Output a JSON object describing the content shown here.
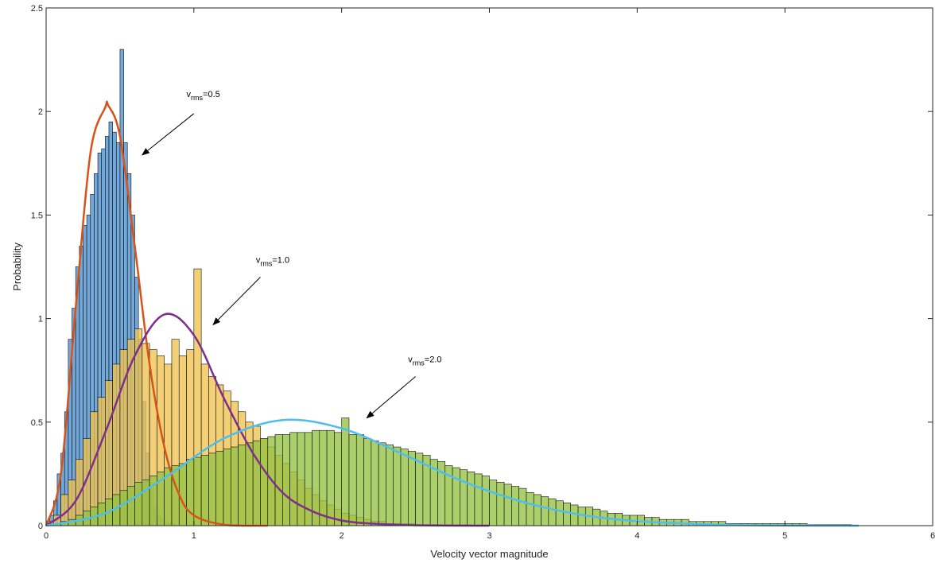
{
  "chart_data": {
    "type": "bar",
    "xlabel": "Velocity vector magnitude",
    "ylabel": "Probability",
    "xlim": [
      0,
      6
    ],
    "ylim": [
      0,
      2.5
    ],
    "xticks": [
      "0",
      "1",
      "2",
      "3",
      "4",
      "5",
      "6"
    ],
    "yticks": [
      "0",
      "0.5",
      "1",
      "1.5",
      "2",
      "2.5"
    ],
    "grid": false,
    "box": true,
    "bar_colors": [
      "#4a90cf",
      "#f0c34f",
      "#93c141"
    ],
    "curve_colors": [
      "#d95319",
      "#7e2f8e",
      "#4dbeee"
    ],
    "series": [
      {
        "kind": "histogram",
        "bin_start": 0.0,
        "bin_width": 0.025,
        "values": [
          0.01,
          0.05,
          0.12,
          0.25,
          0.35,
          0.55,
          0.9,
          1.05,
          1.25,
          1.35,
          1.45,
          1.5,
          1.6,
          1.7,
          1.8,
          1.82,
          1.88,
          1.95,
          1.9,
          1.85,
          2.3,
          1.85,
          1.7,
          1.5,
          1.2,
          0.9,
          0.6,
          0.35,
          0.2,
          0.1,
          0.05,
          0.03,
          0.02,
          0.01,
          0.01,
          0.0
        ]
      },
      {
        "kind": "histogram",
        "bin_start": 0.0,
        "bin_width": 0.05,
        "values": [
          0.02,
          0.05,
          0.15,
          0.22,
          0.32,
          0.42,
          0.55,
          0.62,
          0.7,
          0.78,
          0.85,
          0.9,
          0.95,
          0.88,
          0.85,
          0.82,
          0.78,
          0.9,
          0.82,
          0.85,
          1.24,
          0.78,
          0.72,
          0.68,
          0.65,
          0.6,
          0.55,
          0.5,
          0.48,
          0.42,
          0.38,
          0.34,
          0.3,
          0.26,
          0.22,
          0.18,
          0.15,
          0.12,
          0.1,
          0.08,
          0.06,
          0.05,
          0.04,
          0.03,
          0.02,
          0.02,
          0.01,
          0.01,
          0.01,
          0.01,
          0.0,
          0.0,
          0.0,
          0.0,
          0.0,
          0.0,
          0.0,
          0.0,
          0.0,
          0.0
        ]
      },
      {
        "kind": "histogram",
        "bin_start": 0.0,
        "bin_width": 0.05,
        "values": [
          0.005,
          0.01,
          0.02,
          0.03,
          0.05,
          0.07,
          0.09,
          0.11,
          0.13,
          0.15,
          0.17,
          0.19,
          0.21,
          0.22,
          0.24,
          0.26,
          0.28,
          0.29,
          0.3,
          0.32,
          0.33,
          0.34,
          0.35,
          0.36,
          0.37,
          0.38,
          0.39,
          0.4,
          0.41,
          0.42,
          0.43,
          0.44,
          0.44,
          0.45,
          0.45,
          0.45,
          0.46,
          0.46,
          0.46,
          0.45,
          0.52,
          0.44,
          0.44,
          0.42,
          0.41,
          0.4,
          0.39,
          0.38,
          0.37,
          0.36,
          0.35,
          0.34,
          0.32,
          0.31,
          0.29,
          0.28,
          0.27,
          0.26,
          0.25,
          0.24,
          0.22,
          0.21,
          0.2,
          0.19,
          0.18,
          0.16,
          0.15,
          0.14,
          0.13,
          0.12,
          0.11,
          0.1,
          0.09,
          0.09,
          0.08,
          0.07,
          0.06,
          0.06,
          0.05,
          0.05,
          0.05,
          0.04,
          0.04,
          0.03,
          0.03,
          0.03,
          0.03,
          0.02,
          0.02,
          0.02,
          0.02,
          0.02,
          0.01,
          0.01,
          0.01,
          0.01,
          0.01,
          0.01,
          0.01,
          0.01,
          0.01,
          0.01,
          0.01,
          0.005,
          0.005,
          0.005,
          0.005,
          0.005,
          0.005
        ]
      },
      {
        "kind": "curve",
        "x": [
          0,
          0.1,
          0.2,
          0.3,
          0.4,
          0.42,
          0.5,
          0.6,
          0.7,
          0.8,
          0.9,
          1.0,
          1.2,
          1.5
        ],
        "y": [
          0,
          0.25,
          1.05,
          1.8,
          2.02,
          2.03,
          1.88,
          1.35,
          0.78,
          0.38,
          0.15,
          0.05,
          0.005,
          0.0
        ]
      },
      {
        "kind": "curve",
        "x": [
          0,
          0.2,
          0.4,
          0.6,
          0.8,
          1.0,
          1.2,
          1.4,
          1.6,
          1.8,
          2.0,
          2.2,
          2.5,
          3.0
        ],
        "y": [
          0,
          0.12,
          0.45,
          0.82,
          1.02,
          0.92,
          0.62,
          0.35,
          0.16,
          0.07,
          0.025,
          0.01,
          0.002,
          0.0
        ]
      },
      {
        "kind": "curve",
        "x": [
          0,
          0.4,
          0.8,
          1.2,
          1.6,
          2.0,
          2.4,
          2.8,
          3.2,
          3.6,
          4.0,
          4.5,
          5.0,
          5.5
        ],
        "y": [
          0,
          0.06,
          0.23,
          0.42,
          0.51,
          0.47,
          0.35,
          0.22,
          0.12,
          0.055,
          0.022,
          0.006,
          0.001,
          0.0
        ]
      }
    ],
    "annotations": [
      {
        "base": "v",
        "sub": "rms",
        "rest": "=0.5",
        "text_x": 0.95,
        "text_y": 2.07,
        "arrow_from": [
          1.0,
          1.99
        ],
        "arrow_to": [
          0.65,
          1.79
        ]
      },
      {
        "base": "v",
        "sub": "rms",
        "rest": "=1.0",
        "text_x": 1.42,
        "text_y": 1.27,
        "arrow_from": [
          1.45,
          1.2
        ],
        "arrow_to": [
          1.13,
          0.97
        ]
      },
      {
        "base": "v",
        "sub": "rms",
        "rest": "=2.0",
        "text_x": 2.45,
        "text_y": 0.79,
        "arrow_from": [
          2.5,
          0.72
        ],
        "arrow_to": [
          2.17,
          0.52
        ]
      }
    ]
  }
}
